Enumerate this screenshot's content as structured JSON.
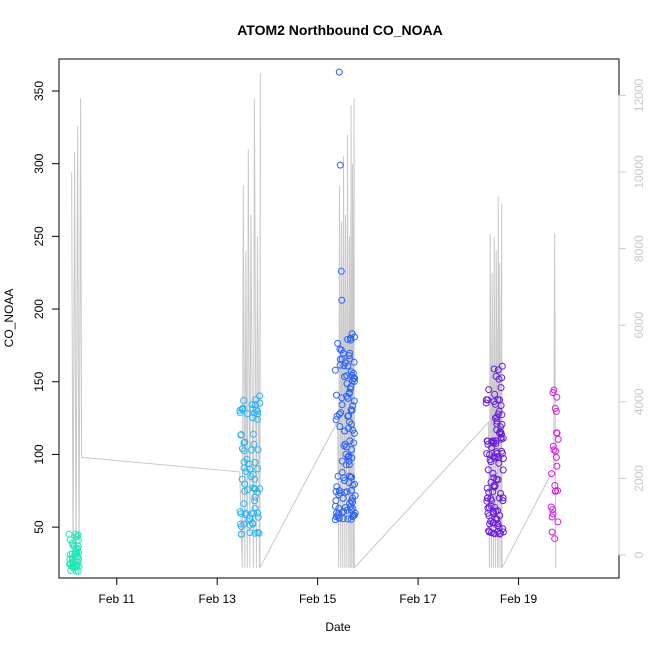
{
  "chart_data": {
    "type": "scatter",
    "title": "ATOM2 Northbound CO_NOAA",
    "xlabel": "Date",
    "ylabel": "CO_NOAA",
    "x_ticks": [
      {
        "day": 11,
        "label": "Feb 11"
      },
      {
        "day": 13,
        "label": "Feb 13"
      },
      {
        "day": 15,
        "label": "Feb 15"
      },
      {
        "day": 17,
        "label": "Feb 17"
      },
      {
        "day": 19,
        "label": "Feb 19"
      }
    ],
    "xlim_days": [
      9.85,
      21.0
    ],
    "ylim": [
      15,
      372
    ],
    "y_ticks": [
      50,
      100,
      150,
      200,
      250,
      300,
      350
    ],
    "y2": {
      "label": "",
      "ticks": [
        0,
        2000,
        4000,
        6000,
        8000,
        10000,
        12000
      ],
      "ylim": [
        -600,
        12950
      ],
      "color": "#c8c8c8"
    },
    "grid": false,
    "colors": {
      "seg1": "#1de9b6",
      "seg2": "#29b6f6",
      "seg3": "#2962ff",
      "seg4": "#6a1be0",
      "seg5": "#d81be9",
      "altitude": "#c8c8c8"
    }
  }
}
